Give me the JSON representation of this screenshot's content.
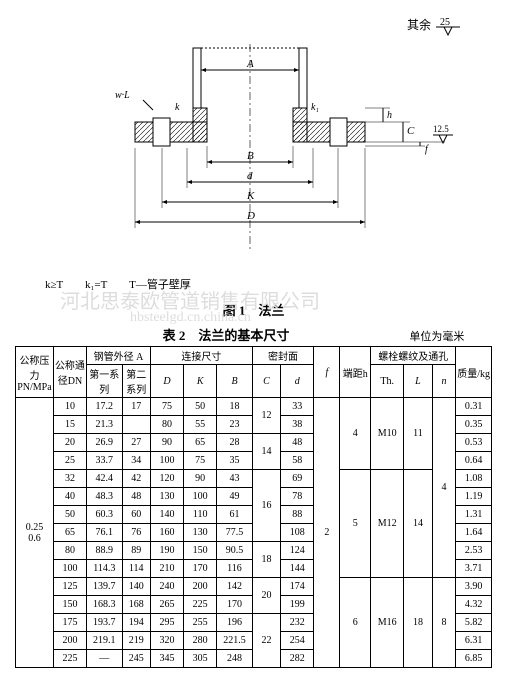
{
  "header": {
    "qiyu": "其余",
    "qiyu_val": "25"
  },
  "diagram": {
    "note": "k≥T　　k₁=T　　T—管子壁厚",
    "title": "图 1　法兰",
    "labels": {
      "A": "A",
      "B": "B",
      "d": "d",
      "K": "K",
      "D": "D",
      "h": "h",
      "C": "C",
      "f": "f",
      "k": "k",
      "k1": "k₁",
      "wL": "w·L",
      "tri": "12.5"
    }
  },
  "watermark": {
    "line1": "河北思泰欧管道销售有限公司",
    "line2": "hbsteelgd.cn.china.cn"
  },
  "table": {
    "title": "表 2　法兰的基本尺寸",
    "unit": "单位为毫米",
    "headers": {
      "pn": "公称压力PN/MPa",
      "dn": "公称通径DN",
      "pipeA": "钢管外径 A",
      "series1": "第一系列",
      "series2": "第二系列",
      "conn": "连接尺寸",
      "D": "D",
      "K": "K",
      "B": "B",
      "seal": "密封面",
      "C": "C",
      "d": "d",
      "f": "f",
      "h": "端距h",
      "bolt": "螺栓螺纹及通孔",
      "Th": "Th.",
      "L": "L",
      "n": "n",
      "kg": "质量/kg"
    },
    "pn_val": "0.25\n0.6",
    "f_val": "2",
    "n_vals": [
      "4",
      "8"
    ],
    "rows": [
      {
        "dn": "10",
        "a1": "17.2",
        "a2": "17",
        "D": "75",
        "K": "50",
        "B": "18",
        "C": "12",
        "d": "33",
        "h": "4",
        "th": "M10",
        "L": "11",
        "kg": "0.31"
      },
      {
        "dn": "15",
        "a1": "21.3",
        "a2": "",
        "D": "80",
        "K": "55",
        "B": "23",
        "C": "",
        "d": "38",
        "h": "",
        "th": "",
        "L": "",
        "kg": "0.35"
      },
      {
        "dn": "20",
        "a1": "26.9",
        "a2": "27",
        "D": "90",
        "K": "65",
        "B": "28",
        "C": "14",
        "d": "48",
        "h": "",
        "th": "",
        "L": "",
        "kg": "0.53"
      },
      {
        "dn": "25",
        "a1": "33.7",
        "a2": "34",
        "D": "100",
        "K": "75",
        "B": "35",
        "C": "",
        "d": "58",
        "h": "",
        "th": "",
        "L": "",
        "kg": "0.64"
      },
      {
        "dn": "32",
        "a1": "42.4",
        "a2": "42",
        "D": "120",
        "K": "90",
        "B": "43",
        "C": "16",
        "d": "69",
        "h": "5",
        "th": "M12",
        "L": "14",
        "kg": "1.08"
      },
      {
        "dn": "40",
        "a1": "48.3",
        "a2": "48",
        "D": "130",
        "K": "100",
        "B": "49",
        "C": "",
        "d": "78",
        "h": "",
        "th": "",
        "L": "",
        "kg": "1.19"
      },
      {
        "dn": "50",
        "a1": "60.3",
        "a2": "60",
        "D": "140",
        "K": "110",
        "B": "61",
        "C": "",
        "d": "88",
        "h": "",
        "th": "",
        "L": "",
        "kg": "1.31"
      },
      {
        "dn": "65",
        "a1": "76.1",
        "a2": "76",
        "D": "160",
        "K": "130",
        "B": "77.5",
        "C": "",
        "d": "108",
        "h": "",
        "th": "",
        "L": "",
        "kg": "1.64"
      },
      {
        "dn": "80",
        "a1": "88.9",
        "a2": "89",
        "D": "190",
        "K": "150",
        "B": "90.5",
        "C": "18",
        "d": "124",
        "h": "",
        "th": "",
        "L": "",
        "kg": "2.53"
      },
      {
        "dn": "100",
        "a1": "114.3",
        "a2": "114",
        "D": "210",
        "K": "170",
        "B": "116",
        "C": "",
        "d": "144",
        "h": "",
        "th": "",
        "L": "",
        "kg": "3.71"
      },
      {
        "dn": "125",
        "a1": "139.7",
        "a2": "140",
        "D": "240",
        "K": "200",
        "B": "142",
        "C": "20",
        "d": "174",
        "h": "6",
        "th": "M16",
        "L": "18",
        "kg": "3.90"
      },
      {
        "dn": "150",
        "a1": "168.3",
        "a2": "168",
        "D": "265",
        "K": "225",
        "B": "170",
        "C": "",
        "d": "199",
        "h": "",
        "th": "",
        "L": "",
        "kg": "4.32"
      },
      {
        "dn": "175",
        "a1": "193.7",
        "a2": "194",
        "D": "295",
        "K": "255",
        "B": "196",
        "C": "22",
        "d": "232",
        "h": "",
        "th": "",
        "L": "",
        "kg": "5.82"
      },
      {
        "dn": "200",
        "a1": "219.1",
        "a2": "219",
        "D": "320",
        "K": "280",
        "B": "221.5",
        "C": "",
        "d": "254",
        "h": "",
        "th": "",
        "L": "",
        "kg": "6.31"
      },
      {
        "dn": "225",
        "a1": "—",
        "a2": "245",
        "D": "345",
        "K": "305",
        "B": "248",
        "C": "",
        "d": "282",
        "h": "",
        "th": "",
        "L": "",
        "kg": "6.85"
      }
    ]
  }
}
